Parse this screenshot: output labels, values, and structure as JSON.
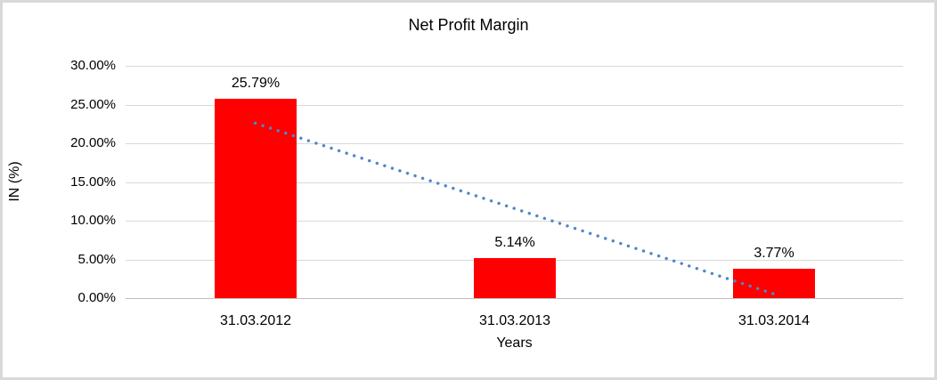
{
  "frame": {
    "border_color": "#d9d9d9",
    "background_color": "#ffffff"
  },
  "chart_data": {
    "type": "bar",
    "title": "Net Profit Margin",
    "xlabel": "Years",
    "ylabel": "IN (%)",
    "categories": [
      "31.03.2012",
      "31.03.2013",
      "31.03.2014"
    ],
    "values": [
      25.79,
      5.14,
      3.77
    ],
    "value_labels": [
      "25.79%",
      "5.14%",
      "3.77%"
    ],
    "bar_color": "#ff0000",
    "ylim": [
      0,
      30
    ],
    "y_ticks": [
      {
        "value": 0,
        "label": "0.00%"
      },
      {
        "value": 5,
        "label": "5.00%"
      },
      {
        "value": 10,
        "label": "10.00%"
      },
      {
        "value": 15,
        "label": "15.00%"
      },
      {
        "value": 20,
        "label": "20.00%"
      },
      {
        "value": 25,
        "label": "25.00%"
      },
      {
        "value": 30,
        "label": "30.00%"
      }
    ],
    "grid": "horizontal",
    "gridline_color": "#d9d9d9",
    "legend": "none",
    "trendline": {
      "type": "linear",
      "style": "dotted",
      "color": "#4e87c8",
      "start": {
        "category_index": 0,
        "value": 22.6
      },
      "end": {
        "category_index": 2,
        "value": 0.56
      }
    }
  }
}
